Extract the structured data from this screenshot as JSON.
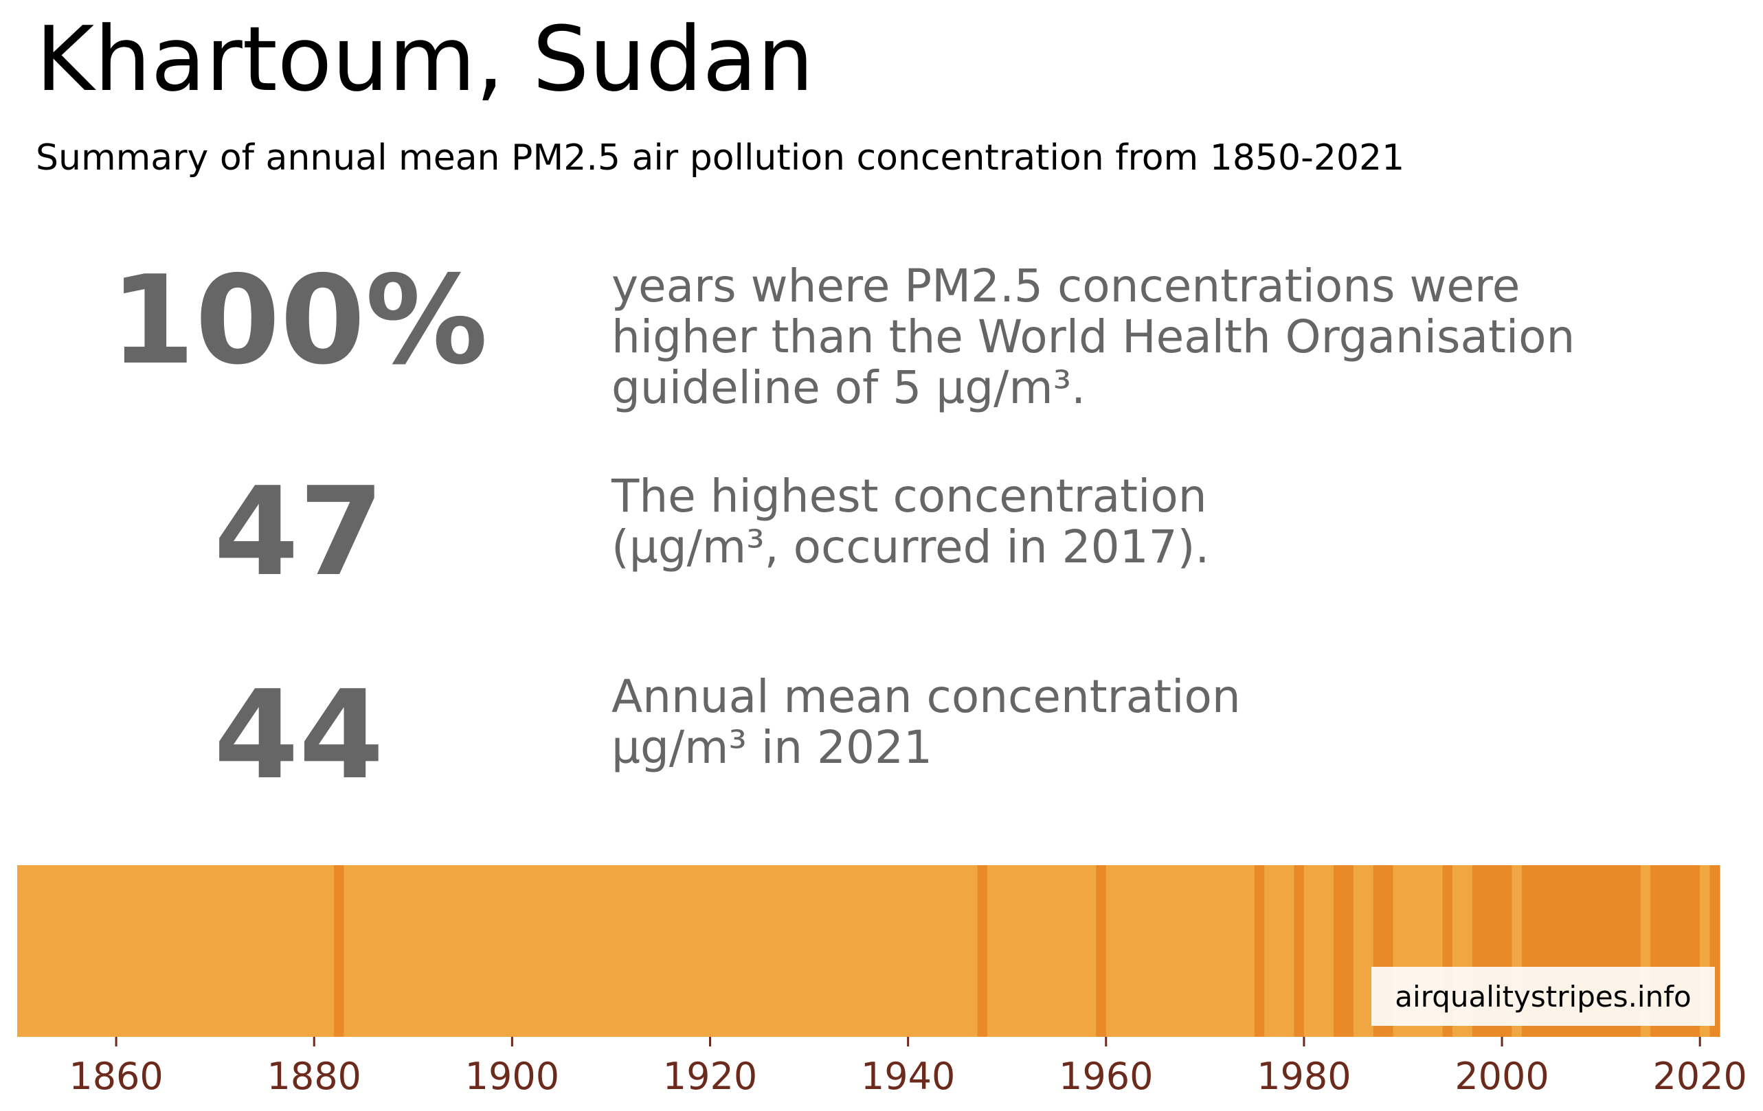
{
  "title": "Khartoum, Sudan",
  "subtitle": "Summary of annual mean PM2.5 air pollution concentration from 1850-2021",
  "stats": [
    {
      "value": "100%",
      "lines": [
        "years where PM2.5 concentrations were",
        "higher than the World Health Organisation",
        "guideline of 5 µg/m³."
      ]
    },
    {
      "value": "47",
      "lines": [
        "The highest concentration",
        "(µg/m³, occurred in 2017)."
      ]
    },
    {
      "value": "44",
      "lines": [
        "Annual mean concentration",
        "µg/m³ in 2021"
      ]
    }
  ],
  "colors": {
    "text_stat": "#666666",
    "stripe_light": "#f0a741",
    "stripe_dark": "#e88a27",
    "tick_label": "#6b2a1c"
  },
  "chart_data": {
    "type": "heatmap",
    "title": "",
    "xlabel": "",
    "ylabel": "",
    "xlim": [
      1850,
      2022
    ],
    "x_ticks": [
      1860,
      1880,
      1900,
      1920,
      1940,
      1960,
      1980,
      2000,
      2020
    ],
    "color_levels": [
      "light",
      "dark"
    ],
    "dark_years": [
      1882,
      1947,
      1959,
      1975,
      1979,
      1983,
      1984,
      1987,
      1988,
      1994,
      1997,
      1998,
      1999,
      2000,
      2002,
      2003,
      2004,
      2005,
      2006,
      2007,
      2008,
      2009,
      2010,
      2011,
      2012,
      2013,
      2015,
      2016,
      2017,
      2018,
      2019,
      2021
    ],
    "watermark": "airqualitystripes.info"
  }
}
